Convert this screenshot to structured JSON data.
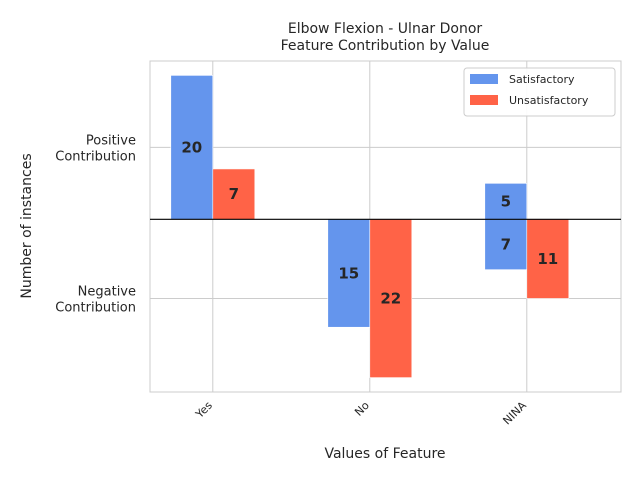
{
  "chart_data": {
    "type": "bar",
    "title_lines": [
      "Elbow Flexion - Ulnar Donor",
      "Feature Contribution by Value"
    ],
    "xlabel": "Values of Feature",
    "ylabel": "Number of instances",
    "categories": [
      "Yes",
      "No",
      "NINA"
    ],
    "ylim": [
      -24,
      22
    ],
    "y_ticks": [
      {
        "value": 10,
        "label_lines": [
          "Positive",
          "Contribution"
        ]
      },
      {
        "value": -11,
        "label_lines": [
          "Negative",
          "Contribution"
        ]
      }
    ],
    "series": [
      {
        "name": "Satisfactory",
        "color": "#6495ED",
        "values": [
          {
            "category": "Yes",
            "positive": 20,
            "negative": 0
          },
          {
            "category": "No",
            "positive": 0,
            "negative": 15
          },
          {
            "category": "NINA",
            "positive": 5,
            "negative": 7
          }
        ]
      },
      {
        "name": "Unsatisfactory",
        "color": "#FF6347",
        "values": [
          {
            "category": "Yes",
            "positive": 7,
            "negative": 0
          },
          {
            "category": "No",
            "positive": 0,
            "negative": 22
          },
          {
            "category": "NINA",
            "positive": 0,
            "negative": 11
          }
        ]
      }
    ],
    "grid": true,
    "legend_position": "top-right"
  }
}
